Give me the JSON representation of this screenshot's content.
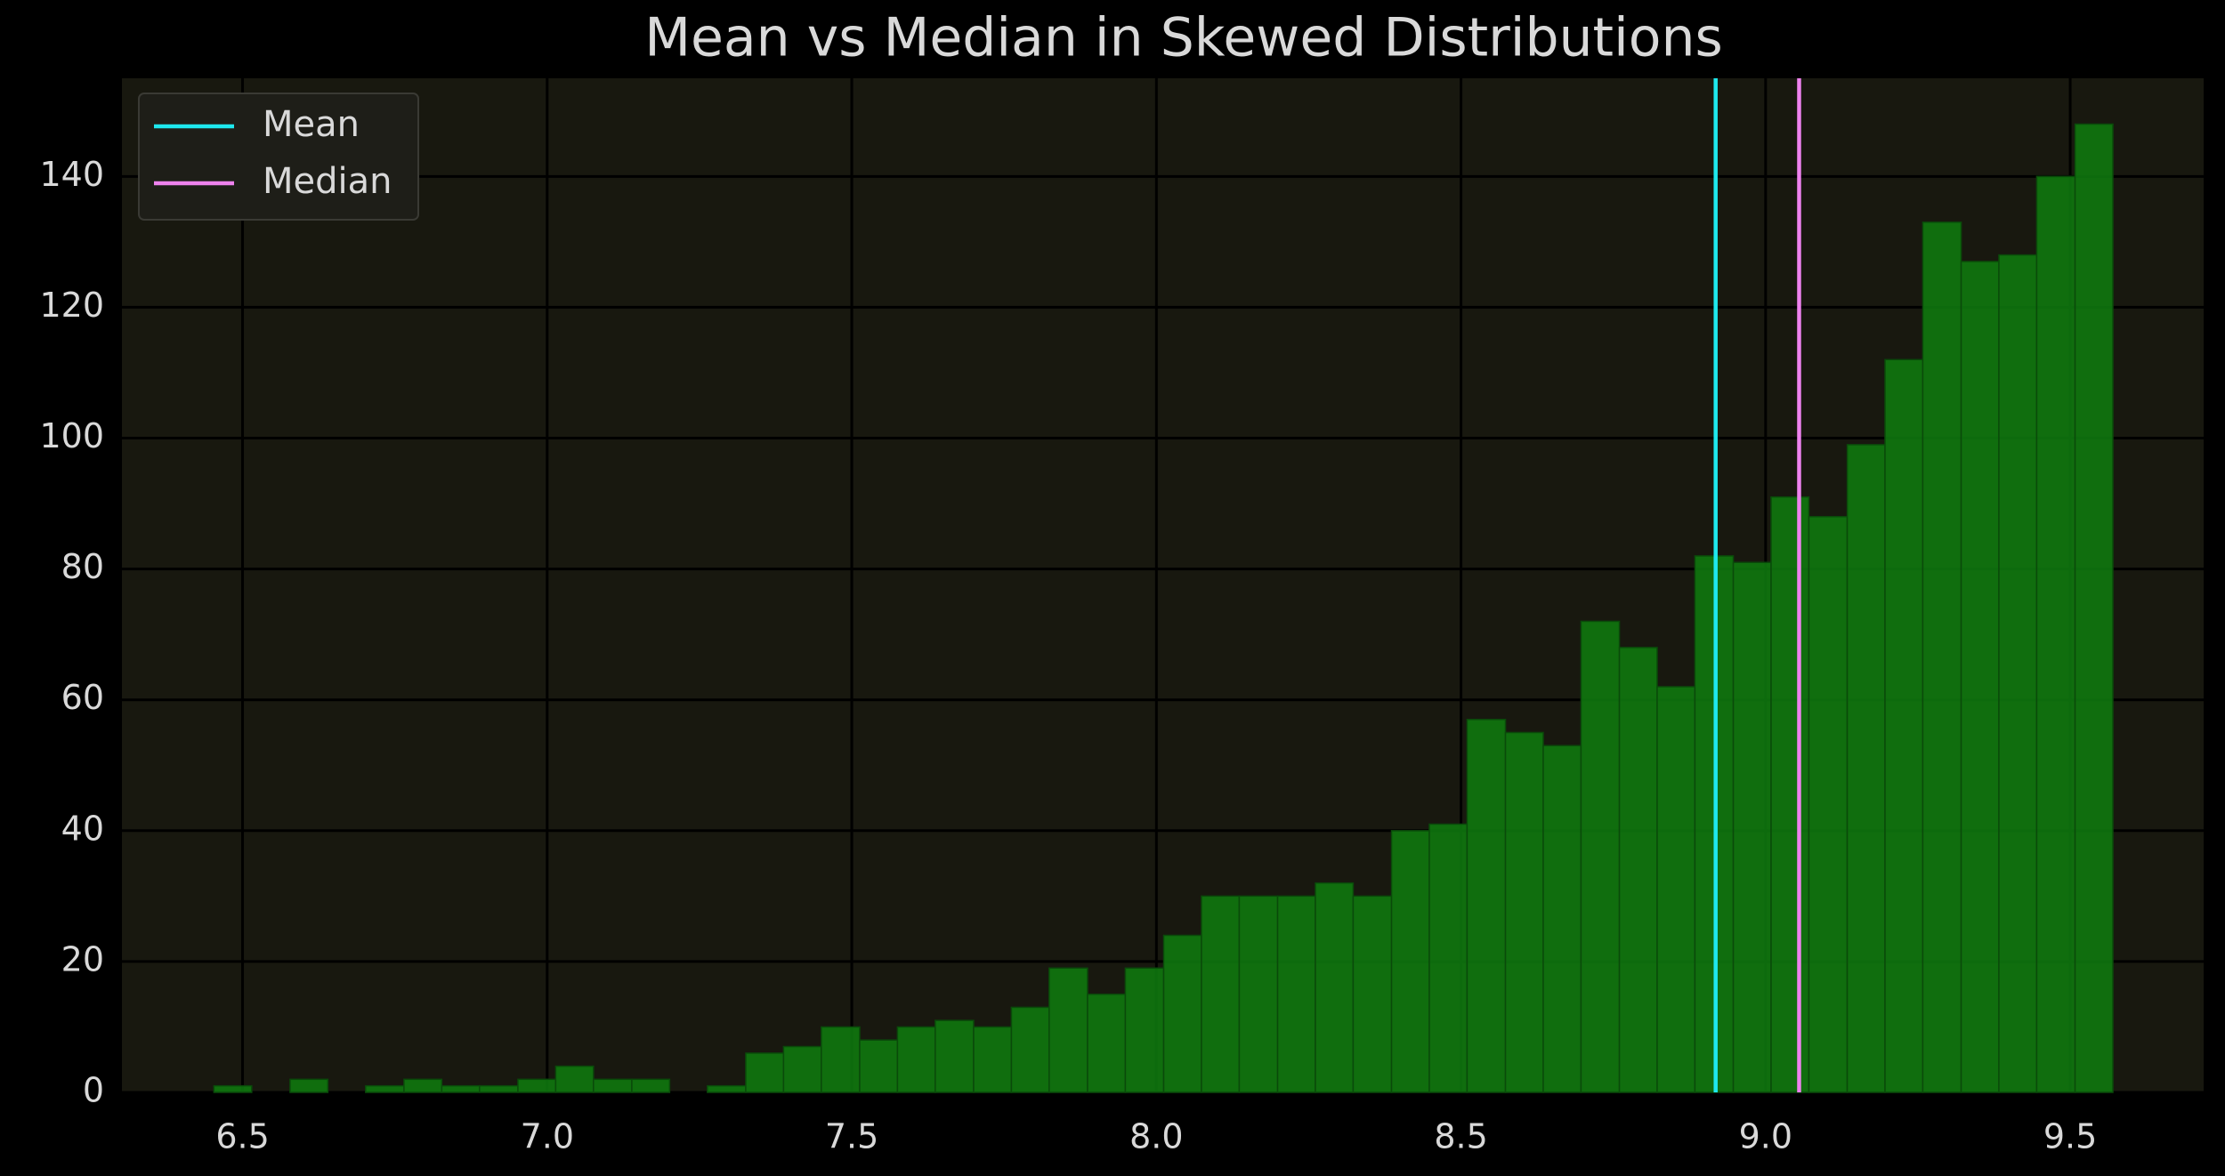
{
  "chart_data": {
    "type": "histogram",
    "title": "Mean vs Median in Skewed Distributions",
    "bins": [
      6.453,
      6.515,
      6.578,
      6.64,
      6.702,
      6.765,
      6.827,
      6.889,
      6.952,
      7.014,
      7.076,
      7.139,
      7.201,
      7.263,
      7.326,
      7.388,
      7.45,
      7.513,
      7.575,
      7.637,
      7.7,
      7.762,
      7.824,
      7.887,
      7.949,
      8.012,
      8.074,
      8.136,
      8.199,
      8.261,
      8.323,
      8.386,
      8.448,
      8.51,
      8.573,
      8.635,
      8.697,
      8.76,
      8.822,
      8.884,
      8.947,
      9.009,
      9.071,
      9.134,
      9.196,
      9.258,
      9.321,
      9.383,
      9.445,
      9.508,
      9.57
    ],
    "values": [
      1,
      0,
      2,
      0,
      1,
      2,
      1,
      1,
      2,
      4,
      2,
      2,
      0,
      1,
      6,
      7,
      10,
      8,
      10,
      11,
      10,
      13,
      19,
      15,
      19,
      24,
      30,
      30,
      30,
      32,
      30,
      40,
      41,
      57,
      55,
      53,
      72,
      68,
      62,
      82,
      81,
      91,
      88,
      99,
      112,
      133,
      127,
      128,
      140,
      148
    ],
    "color": "#0f7a0f",
    "vlines": [
      {
        "name": "Mean",
        "color": "#1ee8ee",
        "x": 8.918
      },
      {
        "name": "Median",
        "color": "#ee82ee",
        "x": 9.055
      }
    ],
    "xlim": [
      6.302,
      9.719
    ],
    "ylim": [
      0,
      155
    ],
    "xticks": [
      6.5,
      {
        "value": 7,
        "label": "7.0"
      },
      7.5,
      {
        "value": 8,
        "label": "8.0"
      },
      8.5,
      {
        "value": 9,
        "label": "9.0"
      },
      9.5
    ],
    "yticks": [
      0,
      20,
      40,
      60,
      80,
      100,
      120,
      140
    ],
    "grid": true,
    "legend": "upper left"
  }
}
